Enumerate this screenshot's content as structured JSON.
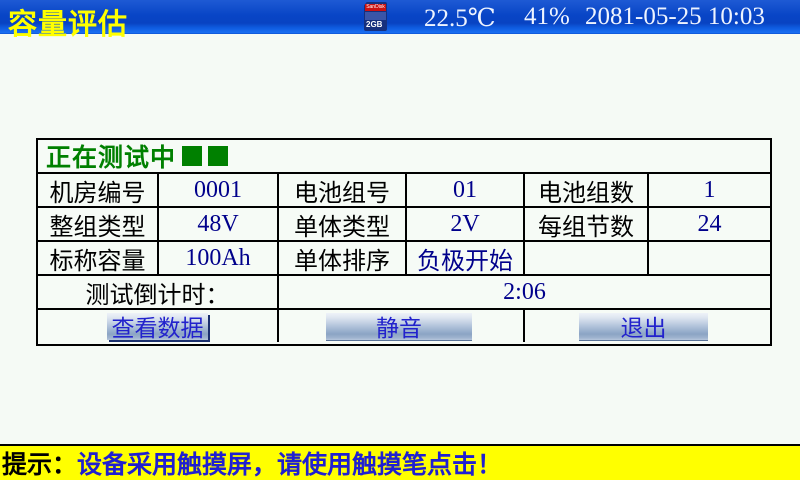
{
  "header": {
    "title": "容量评估",
    "temperature": "22.5℃",
    "humidity": "41%",
    "datetime": "2081-05-25 10:03",
    "sd_card": {
      "brand": "SanDisk",
      "capacity": "2GB"
    }
  },
  "status": {
    "text": "正在测试中",
    "indicator_squares": 2
  },
  "table": {
    "rows": [
      {
        "cells": [
          {
            "label": "机房编号"
          },
          {
            "value": "0001"
          },
          {
            "label": "电池组号"
          },
          {
            "value": "01"
          },
          {
            "label": "电池组数"
          },
          {
            "value": "1"
          }
        ]
      },
      {
        "cells": [
          {
            "label": "整组类型"
          },
          {
            "value": "48V"
          },
          {
            "label": "单体类型"
          },
          {
            "value": "2V"
          },
          {
            "label": "每组节数"
          },
          {
            "value": "24"
          }
        ]
      },
      {
        "cells": [
          {
            "label": "标称容量"
          },
          {
            "value": "100Ah"
          },
          {
            "label": "单体排序"
          },
          {
            "value": "负极开始"
          },
          {
            "label": ""
          },
          {
            "value": ""
          }
        ]
      }
    ],
    "countdown": {
      "label": "测试倒计时：",
      "value": "2:06"
    }
  },
  "buttons": {
    "view_data": "查看数据",
    "mute": "静音",
    "exit": "退出"
  },
  "footer": {
    "tip_label": "提示：",
    "message": "设备采用触摸屏，请使用触摸笔点击！"
  },
  "colors": {
    "titlebar_blue": "#0845c6",
    "title_yellow": "#ffff00",
    "status_green": "#008000",
    "value_navy": "#00008b",
    "button_text_blue": "#2222cc",
    "footer_yellow": "#ffff00"
  }
}
